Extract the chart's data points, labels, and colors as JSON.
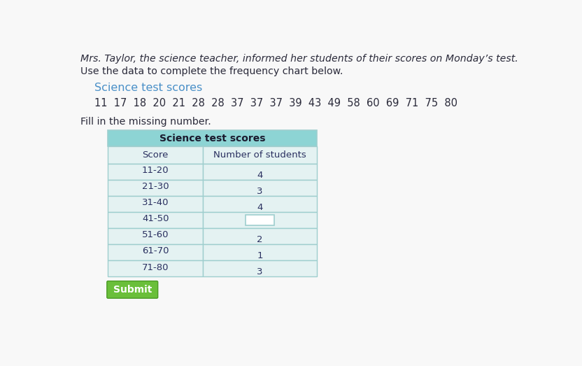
{
  "title_text": "Mrs. Taylor, the science teacher, informed her students of their scores on Monday’s test.",
  "subtitle_text": "Use the data to complete the frequency chart below.",
  "scores_label": "Science test scores",
  "scores_data": "11  17  18  20  21  28  28  37  37  37  39  43  49  58  60  69  71  75  80",
  "fill_in_text": "Fill in the missing number.",
  "table_title": "Science test scores",
  "col1_header": "Score",
  "col2_header": "Number of students",
  "rows": [
    {
      "score": "11-20",
      "count": "4",
      "missing": false
    },
    {
      "score": "21-30",
      "count": "3",
      "missing": false
    },
    {
      "score": "31-40",
      "count": "4",
      "missing": false
    },
    {
      "score": "41-50",
      "count": "",
      "missing": true
    },
    {
      "score": "51-60",
      "count": "2",
      "missing": false
    },
    {
      "score": "61-70",
      "count": "1",
      "missing": false
    },
    {
      "score": "71-80",
      "count": "3",
      "missing": false
    }
  ],
  "bg_color": "#f8f8f8",
  "table_header_color": "#8dd4d4",
  "table_row_color_light": "#e4f2f2",
  "table_border_color": "#9ecece",
  "title_color": "#2a2a3a",
  "scores_label_color": "#4a90c8",
  "submit_button_color": "#6abf3a",
  "submit_text_color": "#ffffff",
  "text_color": "#2a3060"
}
